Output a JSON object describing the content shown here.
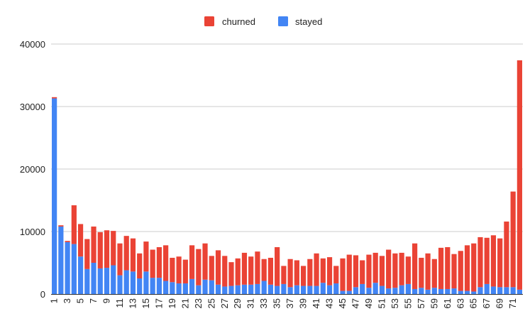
{
  "chart_data": {
    "type": "bar",
    "stacked": true,
    "grid": true,
    "legend_position": "top",
    "ylim": [
      0,
      40000
    ],
    "yticks": [
      0,
      10000,
      20000,
      30000,
      40000
    ],
    "categories": [
      "1",
      "2",
      "3",
      "4",
      "5",
      "6",
      "7",
      "8",
      "9",
      "10",
      "11",
      "12",
      "13",
      "14",
      "15",
      "16",
      "17",
      "18",
      "19",
      "20",
      "21",
      "22",
      "23",
      "24",
      "25",
      "26",
      "27",
      "28",
      "29",
      "30",
      "31",
      "32",
      "33",
      "34",
      "35",
      "36",
      "37",
      "38",
      "39",
      "40",
      "41",
      "42",
      "43",
      "44",
      "45",
      "46",
      "47",
      "48",
      "49",
      "50",
      "51",
      "52",
      "53",
      "54",
      "55",
      "56",
      "57",
      "58",
      "59",
      "60",
      "61",
      "62",
      "63",
      "64",
      "65",
      "66",
      "67",
      "68",
      "69",
      "70",
      "71",
      "72"
    ],
    "xtick_labels": [
      "1",
      "3",
      "5",
      "7",
      "9",
      "11",
      "13",
      "15",
      "17",
      "19",
      "21",
      "23",
      "25",
      "27",
      "29",
      "31",
      "33",
      "35",
      "37",
      "39",
      "41",
      "43",
      "45",
      "47",
      "49",
      "51",
      "53",
      "55",
      "57",
      "59",
      "61",
      "63",
      "65",
      "67",
      "69",
      "71"
    ],
    "series": [
      {
        "name": "stayed",
        "color": "#4285F4",
        "values": [
          31300,
          10800,
          8300,
          8000,
          6000,
          4000,
          5000,
          4100,
          4200,
          4600,
          3000,
          3800,
          3600,
          2500,
          3600,
          2600,
          2600,
          2100,
          1900,
          1700,
          1700,
          2400,
          1400,
          2300,
          2200,
          1500,
          1200,
          1300,
          1400,
          1500,
          1500,
          1600,
          2100,
          1500,
          1300,
          1600,
          1100,
          1400,
          1300,
          1300,
          1300,
          1800,
          1400,
          1700,
          500,
          500,
          1100,
          1600,
          1000,
          1800,
          1300,
          900,
          1000,
          1400,
          1600,
          800,
          1000,
          700,
          1000,
          800,
          800,
          900,
          500,
          500,
          400,
          1100,
          1600,
          1200,
          1100,
          1100,
          1100,
          700
        ]
      },
      {
        "name": "churned",
        "color": "#EA4335",
        "values": [
          200,
          200,
          200,
          6200,
          5200,
          4800,
          5800,
          5800,
          6000,
          5500,
          5100,
          5500,
          5300,
          4000,
          4800,
          4500,
          4900,
          5700,
          3900,
          4300,
          3800,
          5400,
          5800,
          5800,
          3900,
          5500,
          4900,
          3800,
          4300,
          5100,
          4500,
          5200,
          3500,
          4300,
          6200,
          2900,
          4500,
          4000,
          3200,
          4300,
          5200,
          3900,
          4500,
          2800,
          5200,
          5800,
          5100,
          3800,
          5300,
          4800,
          4800,
          6200,
          5500,
          5200,
          4400,
          7300,
          4800,
          5800,
          4600,
          6600,
          6700,
          5500,
          6400,
          7300,
          7700,
          8000,
          7400,
          8200,
          7800,
          10500,
          15300,
          36700
        ]
      }
    ]
  }
}
